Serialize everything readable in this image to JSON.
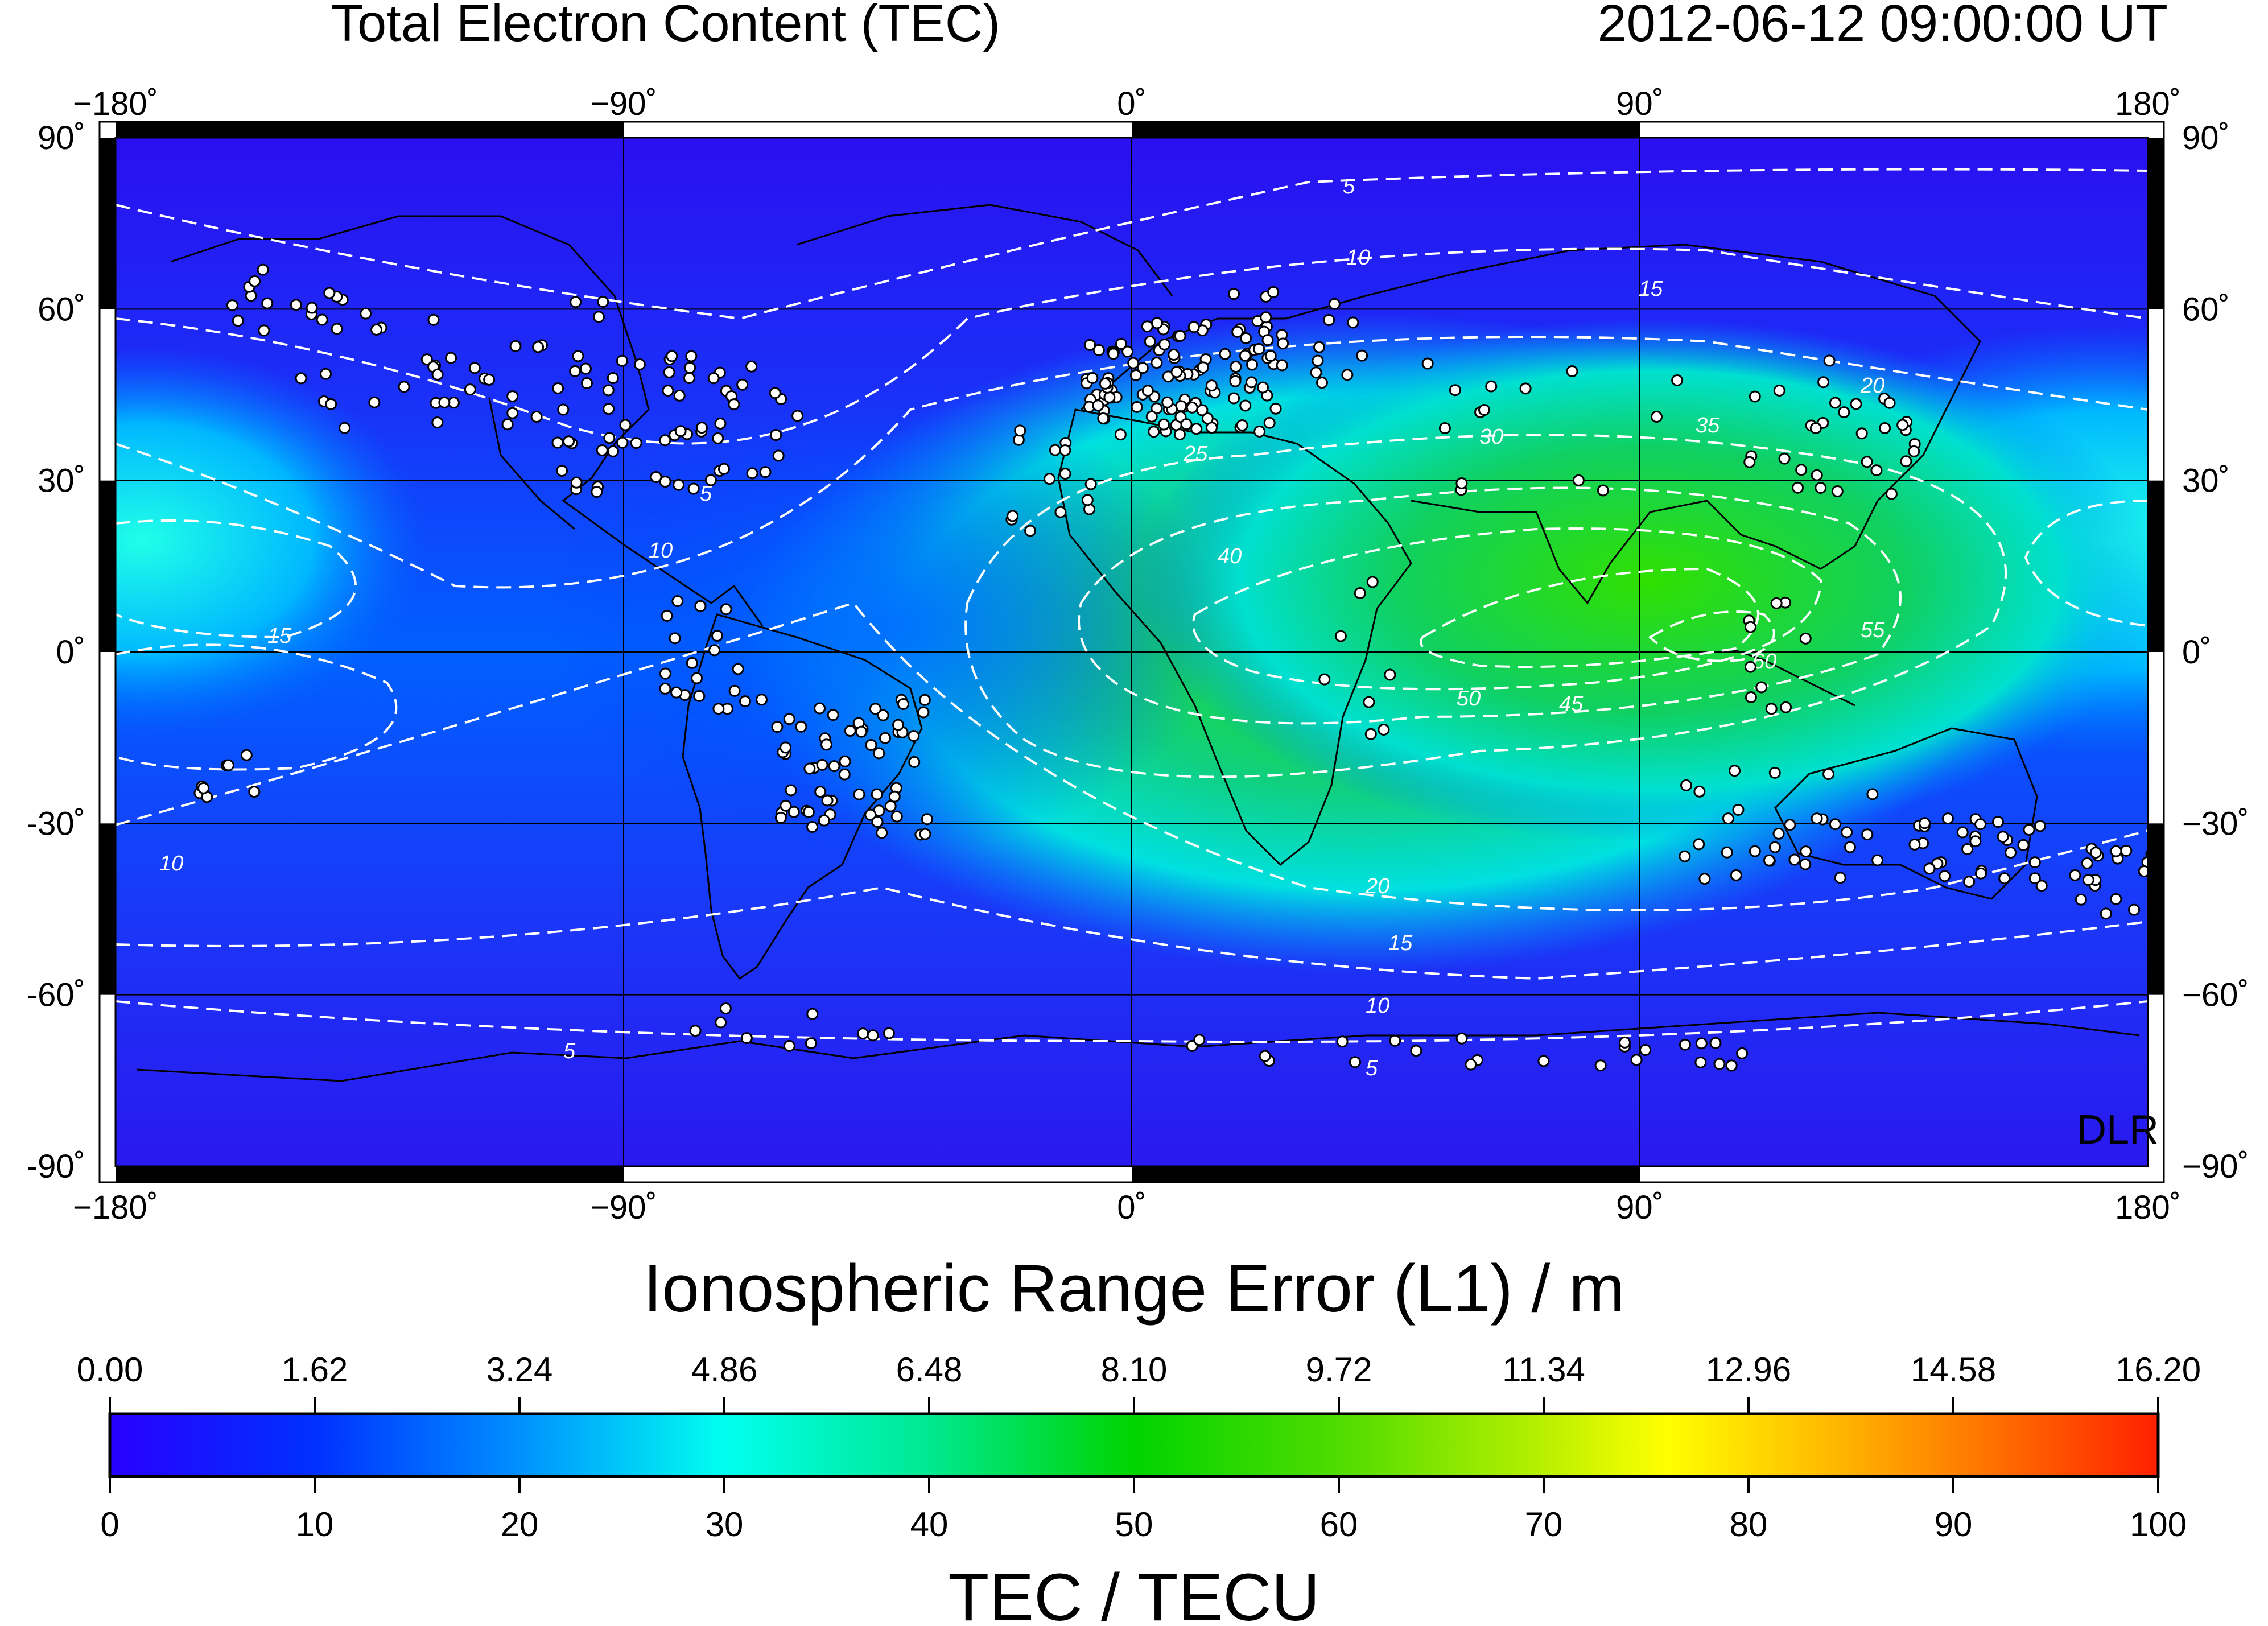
{
  "header": {
    "title": "Total Electron Content (TEC)",
    "timestamp": "2012-06-12  09:00:00 UT"
  },
  "map": {
    "lon_ticks": [
      "−180˚",
      "−90˚",
      "0˚",
      "90˚",
      "180˚"
    ],
    "lat_ticks": [
      "90˚",
      "60˚",
      "30˚",
      "0˚",
      "−30˚",
      "−60˚",
      "−90˚"
    ],
    "lat_ticks_left": [
      "90˚",
      "60˚",
      "30˚",
      "0˚",
      "-30˚",
      "-60˚",
      "-90˚"
    ],
    "watermark": "DLR",
    "contour_labels": [
      "5",
      "10",
      "15",
      "20",
      "25",
      "30",
      "35",
      "40",
      "45",
      "50",
      "55",
      "60"
    ]
  },
  "colorbar": {
    "top_title": "Ionospheric Range Error (L1) / m",
    "top_ticks": [
      "0.00",
      "1.62",
      "3.24",
      "4.86",
      "6.48",
      "8.10",
      "9.72",
      "11.34",
      "12.96",
      "14.58",
      "16.20"
    ],
    "bottom_ticks": [
      "0",
      "10",
      "20",
      "30",
      "40",
      "50",
      "60",
      "70",
      "80",
      "90",
      "100"
    ],
    "bottom_title": "TEC / TECU",
    "colors": [
      "#1e00ff",
      "#0040ff",
      "#0090ff",
      "#00f0ff",
      "#00e080",
      "#00d000",
      "#60e000",
      "#ffff00",
      "#ffb000",
      "#ff6000",
      "#ff2000"
    ]
  },
  "colors": {
    "background_low": "#1e1ef0",
    "contour": "#ffffff",
    "station": "#ffffff"
  }
}
